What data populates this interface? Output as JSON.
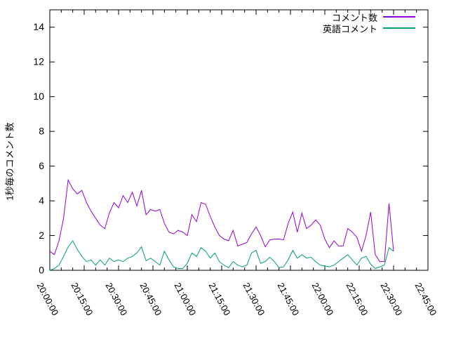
{
  "colors": {
    "background": "#ffffff",
    "axis": "#000000",
    "text": "#000000"
  },
  "chart_data": {
    "type": "line",
    "title": "",
    "xlabel": "",
    "ylabel": "1秒毎のコメント数",
    "grid": false,
    "legend_position": "top-right-inside",
    "ylim": [
      0,
      15
    ],
    "yticks": [
      0,
      2,
      4,
      6,
      8,
      10,
      12,
      14
    ],
    "xlim_minutes": [
      0,
      165
    ],
    "xtick_minutes": [
      0,
      15,
      30,
      45,
      60,
      75,
      90,
      105,
      120,
      135,
      150,
      165
    ],
    "xtick_labels": [
      "20:00:00",
      "20:15:00",
      "20:30:00",
      "20:45:00",
      "21:00:00",
      "21:15:00",
      "21:30:00",
      "21:45:00",
      "22:00:00",
      "22:15:00",
      "22:30:00",
      "22:45:00"
    ],
    "minor_xtick_step_minutes": 5,
    "sample_step_minutes": 2,
    "series": [
      {
        "name": "コメント数",
        "color": "#9400d3",
        "start_minute": 0,
        "step_minutes": 2,
        "values": [
          1.1,
          0.9,
          1.7,
          3.0,
          5.2,
          4.7,
          4.4,
          4.6,
          3.9,
          3.4,
          3.0,
          2.6,
          2.4,
          3.3,
          3.9,
          3.6,
          4.3,
          3.9,
          4.5,
          3.7,
          4.6,
          3.2,
          3.5,
          3.4,
          3.5,
          2.7,
          2.2,
          2.1,
          2.3,
          2.2,
          2.0,
          3.2,
          2.8,
          3.9,
          3.8,
          3.1,
          2.5,
          2.0,
          1.8,
          1.7,
          2.3,
          1.4,
          1.5,
          1.6,
          2.1,
          2.5,
          2.0,
          1.35,
          1.75,
          1.8,
          1.8,
          1.75,
          2.7,
          3.35,
          2.2,
          3.3,
          2.4,
          2.6,
          2.9,
          2.6,
          1.8,
          1.3,
          1.7,
          1.4,
          1.4,
          2.4,
          2.2,
          1.9,
          1.1,
          2.0,
          3.35,
          0.9,
          0.5,
          0.5,
          3.85,
          1.1
        ]
      },
      {
        "name": "英語コメント",
        "color": "#009e73",
        "start_minute": 0,
        "step_minutes": 2,
        "values": [
          0.0,
          0.1,
          0.3,
          0.8,
          1.35,
          1.7,
          1.2,
          0.8,
          0.5,
          0.6,
          0.3,
          0.6,
          0.3,
          0.7,
          0.5,
          0.6,
          0.5,
          0.7,
          0.8,
          1.0,
          1.35,
          0.55,
          0.7,
          0.5,
          0.3,
          1.1,
          0.6,
          0.2,
          0.1,
          0.1,
          0.4,
          1.0,
          0.8,
          1.3,
          1.1,
          0.7,
          1.0,
          0.5,
          0.3,
          0.15,
          0.5,
          0.3,
          0.2,
          0.3,
          1.0,
          1.15,
          0.4,
          0.5,
          0.75,
          0.5,
          0.15,
          0.2,
          0.6,
          1.15,
          0.7,
          0.9,
          0.7,
          0.75,
          0.5,
          0.3,
          0.25,
          0.2,
          0.3,
          0.5,
          0.7,
          0.9,
          0.6,
          0.3,
          0.7,
          0.8,
          0.35,
          0.1,
          0.2,
          0.3,
          1.3,
          1.1
        ]
      }
    ]
  }
}
